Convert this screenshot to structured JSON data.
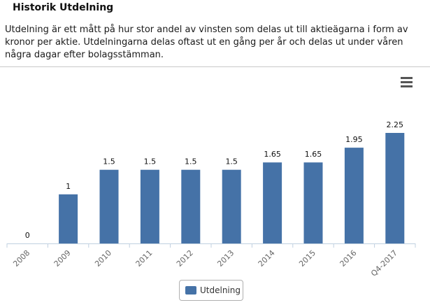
{
  "header": {
    "title": "Historik Utdelning",
    "description": "Utdelning är ett mått på hur stor andel av vinsten som delas ut till aktieägarna i form av kronor per aktie. Utdelningarna delas oftast ut en gång per år och delas ut under våren några dagar efter bolagsstämman."
  },
  "toolbar": {
    "menu_icon": "hamburger-menu-icon"
  },
  "colors": {
    "bar": "#4572a7",
    "axis": "#c0d0e0",
    "tick_text": "#666666"
  },
  "chart_data": {
    "type": "bar",
    "categories": [
      "2008",
      "2009",
      "2010",
      "2011",
      "2012",
      "2013",
      "2014",
      "2015",
      "2016",
      "Q4-2017"
    ],
    "series": [
      {
        "name": "Utdelning",
        "values": [
          0,
          1,
          1.5,
          1.5,
          1.5,
          1.5,
          1.65,
          1.65,
          1.95,
          2.25
        ]
      }
    ],
    "data_labels": [
      "0",
      "1",
      "1.5",
      "1.5",
      "1.5",
      "1.5",
      "1.65",
      "1.65",
      "1.95",
      "2.25"
    ],
    "ylim": [
      0,
      2.5
    ],
    "grid": false,
    "legend_position": "bottom-center"
  },
  "legend": {
    "label": "Utdelning"
  }
}
